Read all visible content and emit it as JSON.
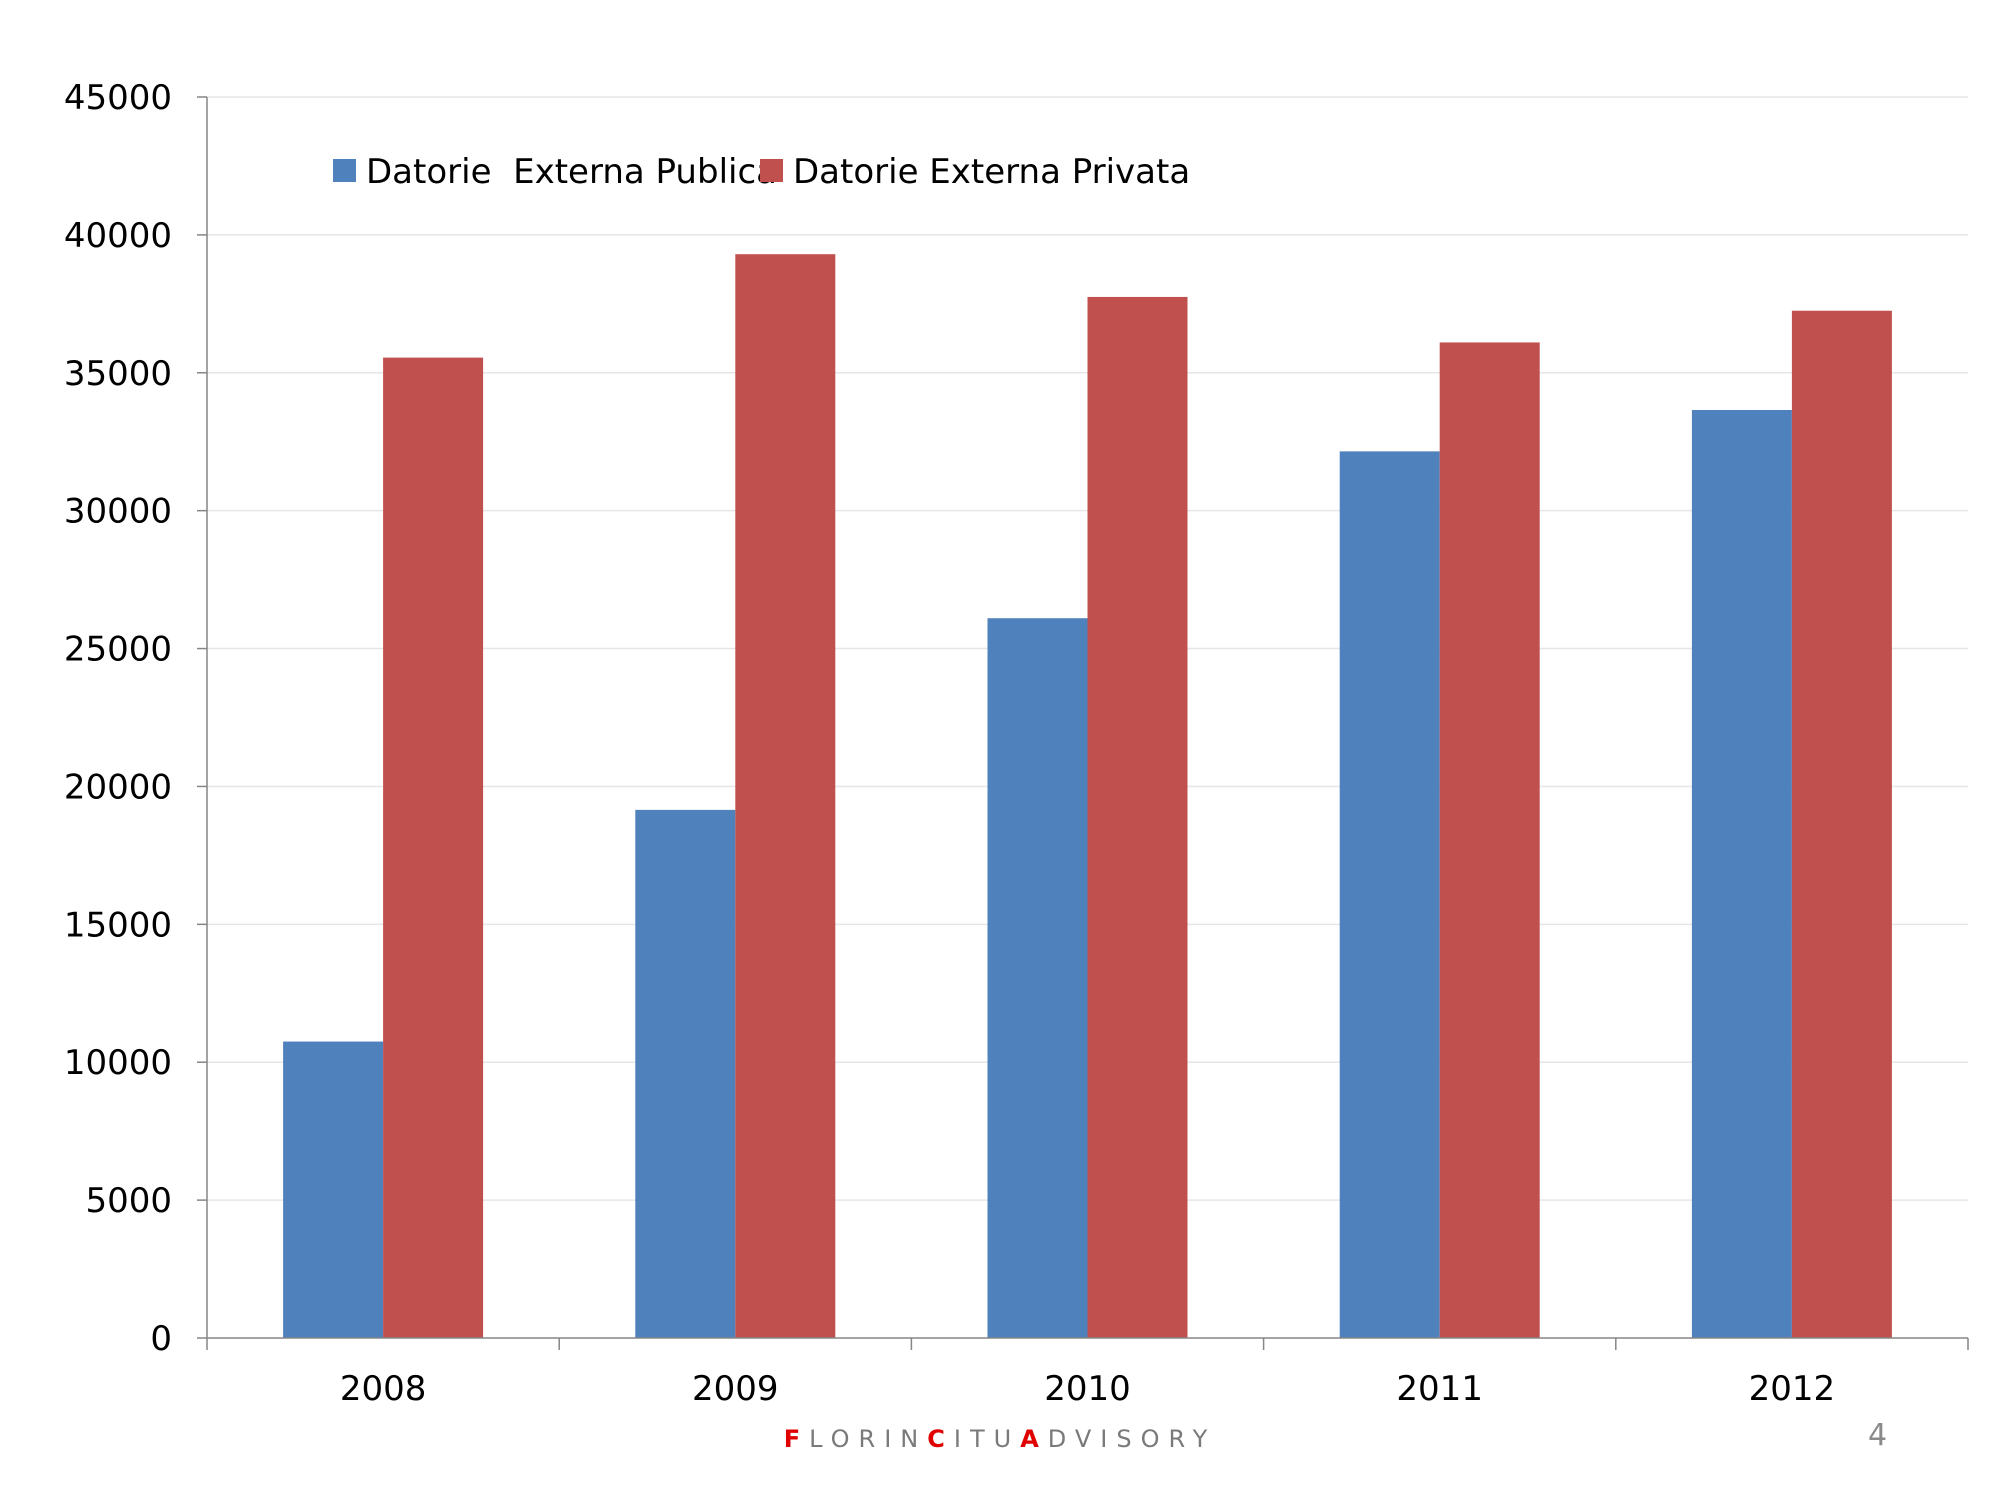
{
  "chart_data": {
    "type": "bar",
    "categories": [
      "2008",
      "2009",
      "2010",
      "2011",
      "2012"
    ],
    "series": [
      {
        "name": "Datorie  Externa Publica",
        "color": "#4F81BD",
        "values": [
          10750,
          19150,
          26100,
          32150,
          33650
        ]
      },
      {
        "name": "Datorie Externa Privata",
        "color": "#C0504D",
        "values": [
          35550,
          39300,
          37750,
          36100,
          37250
        ]
      }
    ],
    "ylim": [
      0,
      45000
    ],
    "yticks": [
      0,
      5000,
      10000,
      15000,
      20000,
      25000,
      30000,
      35000,
      40000,
      45000
    ],
    "grid": true,
    "legend_position": "top-left"
  },
  "footer": {
    "brand_parts": [
      {
        "text": "F",
        "accent": true
      },
      {
        "text": "LORIN",
        "accent": false
      },
      {
        "text": "C",
        "accent": true
      },
      {
        "text": "ITU",
        "accent": false
      },
      {
        "text": "A",
        "accent": true
      },
      {
        "text": "DVISORY",
        "accent": false
      }
    ],
    "page_number": "4"
  }
}
